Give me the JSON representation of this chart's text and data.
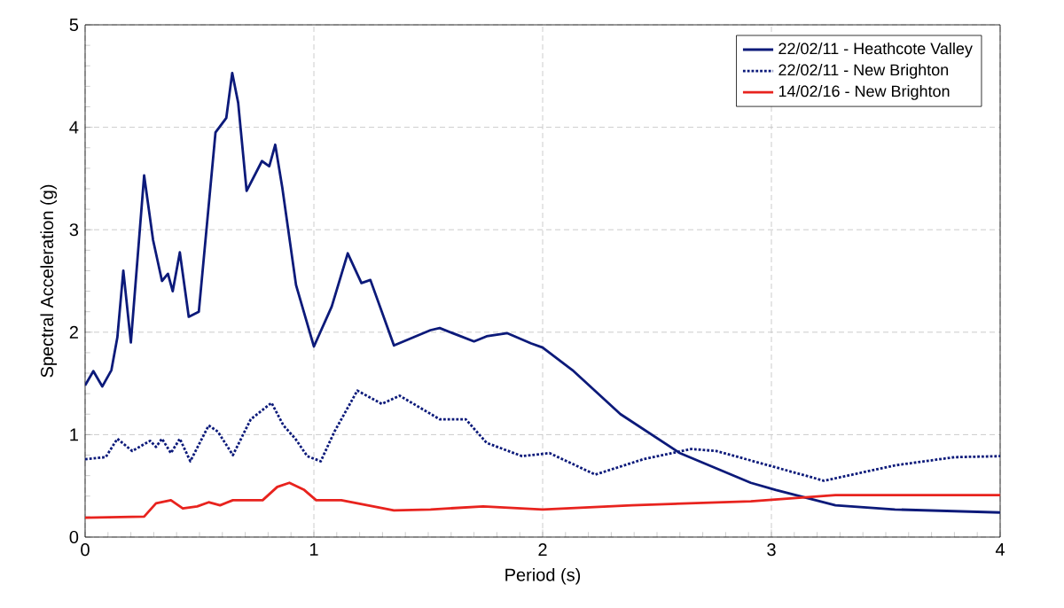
{
  "chart_data": {
    "type": "line",
    "xlabel": "Period (s)",
    "ylabel": "Spectral Acceleration (g)",
    "xlim": [
      0,
      4
    ],
    "ylim": [
      0,
      5
    ],
    "xticks": [
      0,
      1,
      2,
      3,
      4
    ],
    "yticks": [
      0,
      1,
      2,
      3,
      4,
      5
    ],
    "grid": true,
    "legend": "top right",
    "marker": "none",
    "series": [
      {
        "name": "22/02/11 - Heathcote Valley",
        "color": "#0c1a7a",
        "line_style": "solid",
        "x": [
          0,
          0.036,
          0.075,
          0.115,
          0.141,
          0.167,
          0.2,
          0.258,
          0.297,
          0.336,
          0.362,
          0.383,
          0.414,
          0.453,
          0.497,
          0.57,
          0.617,
          0.643,
          0.669,
          0.706,
          0.773,
          0.805,
          0.831,
          0.862,
          0.922,
          1.0,
          1.078,
          1.148,
          1.208,
          1.247,
          1.35,
          1.51,
          1.55,
          1.7,
          1.755,
          1.846,
          1.95,
          2.0,
          2.13,
          2.34,
          2.6,
          2.91,
          3.02,
          3.28,
          3.54,
          4.0
        ],
        "values": [
          1.48,
          1.62,
          1.47,
          1.63,
          1.95,
          2.6,
          1.9,
          3.53,
          2.9,
          2.5,
          2.57,
          2.4,
          2.78,
          2.15,
          2.2,
          3.95,
          4.09,
          4.53,
          4.24,
          3.38,
          3.67,
          3.62,
          3.83,
          3.41,
          2.46,
          1.86,
          2.25,
          2.77,
          2.48,
          2.51,
          1.87,
          2.02,
          2.04,
          1.91,
          1.96,
          1.99,
          1.89,
          1.85,
          1.63,
          1.2,
          0.82,
          0.53,
          0.46,
          0.31,
          0.27,
          0.24
        ]
      },
      {
        "name": "22/02/11 - New Brighton",
        "color": "#0c1a7a",
        "line_style": "dotted",
        "x": [
          0,
          0.09,
          0.141,
          0.206,
          0.284,
          0.31,
          0.336,
          0.375,
          0.414,
          0.46,
          0.54,
          0.58,
          0.646,
          0.724,
          0.815,
          0.867,
          0.919,
          0.971,
          1.03,
          1.09,
          1.19,
          1.297,
          1.375,
          1.55,
          1.664,
          1.755,
          1.91,
          2.03,
          2.23,
          2.44,
          2.65,
          2.76,
          3.02,
          3.23,
          3.54,
          3.8,
          4.0
        ],
        "values": [
          0.76,
          0.78,
          0.96,
          0.84,
          0.94,
          0.88,
          0.96,
          0.82,
          0.96,
          0.74,
          1.09,
          1.03,
          0.8,
          1.15,
          1.31,
          1.09,
          0.96,
          0.79,
          0.74,
          1.03,
          1.43,
          1.3,
          1.38,
          1.15,
          1.15,
          0.92,
          0.79,
          0.82,
          0.61,
          0.76,
          0.86,
          0.84,
          0.68,
          0.55,
          0.7,
          0.78,
          0.79
        ]
      },
      {
        "name": "14/02/16 - New Brighton",
        "color": "#e8231e",
        "line_style": "solid",
        "x": [
          0,
          0.258,
          0.31,
          0.375,
          0.427,
          0.49,
          0.54,
          0.59,
          0.646,
          0.776,
          0.84,
          0.893,
          0.958,
          1.01,
          1.12,
          1.35,
          1.51,
          1.74,
          2.0,
          2.39,
          2.91,
          3.28,
          4.0
        ],
        "values": [
          0.19,
          0.2,
          0.33,
          0.36,
          0.28,
          0.3,
          0.34,
          0.31,
          0.36,
          0.36,
          0.49,
          0.53,
          0.46,
          0.36,
          0.36,
          0.26,
          0.27,
          0.3,
          0.27,
          0.31,
          0.35,
          0.41,
          0.41
        ]
      }
    ]
  }
}
